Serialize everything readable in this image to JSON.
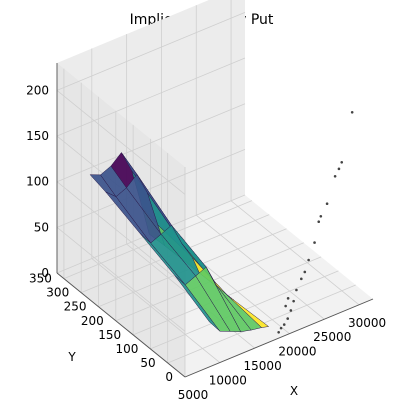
{
  "chart_data": {
    "type": "surface3d",
    "title": "Implied Volatility Put",
    "xlabel": "X",
    "ylabel": "Y",
    "zlabel": "",
    "xlim": [
      5000,
      32000
    ],
    "ylim": [
      0,
      370
    ],
    "zlim": [
      0,
      230
    ],
    "x_ticks": [
      "5000",
      "10000",
      "15000",
      "20000",
      "25000",
      "30000"
    ],
    "y_ticks": [
      "0",
      "50",
      "100",
      "150",
      "200",
      "250",
      "300",
      "350"
    ],
    "z_ticks": [
      "0",
      "50",
      "100",
      "150",
      "200"
    ],
    "grid": true,
    "colormap": [
      "#440154",
      "#3b528b",
      "#21918c",
      "#5ec962",
      "#fde725"
    ],
    "scatter_points": [
      {
        "x": 30500,
        "y": 30,
        "z": 200
      },
      {
        "x": 29000,
        "y": 30,
        "z": 150
      },
      {
        "x": 28500,
        "y": 28,
        "z": 145
      },
      {
        "x": 27800,
        "y": 25,
        "z": 140
      },
      {
        "x": 26500,
        "y": 22,
        "z": 115
      },
      {
        "x": 25500,
        "y": 20,
        "z": 105
      },
      {
        "x": 24500,
        "y": 18,
        "z": 80
      },
      {
        "x": 25200,
        "y": 20,
        "z": 100
      },
      {
        "x": 23500,
        "y": 15,
        "z": 65
      },
      {
        "x": 22800,
        "y": 12,
        "z": 55
      },
      {
        "x": 22200,
        "y": 10,
        "z": 50
      },
      {
        "x": 21500,
        "y": 10,
        "z": 40
      },
      {
        "x": 21000,
        "y": 8,
        "z": 30
      },
      {
        "x": 20500,
        "y": 6,
        "z": 22
      },
      {
        "x": 20000,
        "y": 5,
        "z": 15
      },
      {
        "x": 19500,
        "y": 5,
        "z": 10
      },
      {
        "x": 19000,
        "y": 4,
        "z": 8
      },
      {
        "x": 18600,
        "y": 3,
        "z": 5
      },
      {
        "x": 20200,
        "y": 15,
        "z": 25
      },
      {
        "x": 20800,
        "y": 20,
        "z": 30
      }
    ],
    "surface": {
      "x_grid": [
        9500,
        11000,
        12500,
        14000,
        15500,
        17000,
        18000
      ],
      "y_grid": [
        20,
        120,
        220,
        320,
        365
      ],
      "z_values": [
        [
          40,
          25,
          20,
          15,
          12,
          10,
          8
        ],
        [
          60,
          45,
          50,
          55,
          30,
          15,
          6
        ],
        [
          75,
          60,
          65,
          70,
          45,
          25,
          5
        ],
        [
          90,
          80,
          85,
          95,
          70,
          30,
          4
        ],
        [
          95,
          90,
          95,
          105,
          80,
          35,
          3
        ]
      ]
    }
  }
}
